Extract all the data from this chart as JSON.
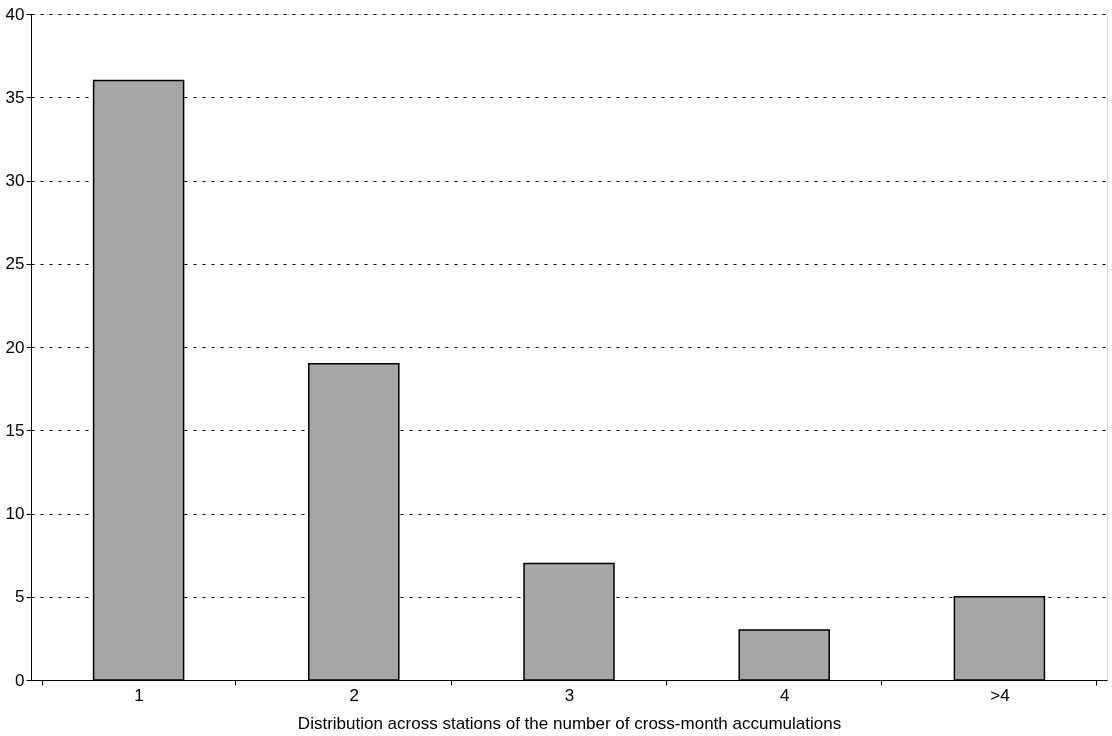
{
  "chart_data": {
    "type": "bar",
    "xlabel": "Distribution across stations of the number of cross-month accumulations",
    "categories": [
      "1",
      "2",
      "3",
      "4",
      ">4"
    ],
    "values": [
      36,
      19,
      7,
      3,
      5
    ],
    "color": "#a6a6a6",
    "ylim": [
      0,
      40
    ],
    "yticks": [
      0,
      5,
      10,
      15,
      20,
      25,
      30,
      35,
      40
    ],
    "grid": "y"
  }
}
